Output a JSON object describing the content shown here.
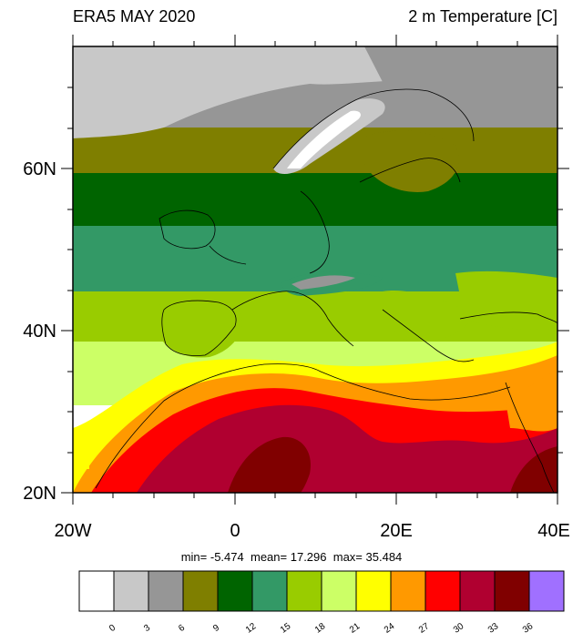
{
  "title_left": "ERA5 MAY 2020",
  "title_right": "2 m Temperature [C]",
  "x_labels": [
    "20W",
    "0",
    "20E",
    "40E"
  ],
  "y_labels": [
    "60N",
    "40N",
    "20N"
  ],
  "stats": {
    "min_label": "min=",
    "min": "-5.474",
    "mean_label": "mean=",
    "mean": "17.296",
    "max_label": "max=",
    "max": "35.484"
  },
  "legend": {
    "levels": [
      "0",
      "3",
      "6",
      "9",
      "12",
      "15",
      "18",
      "21",
      "24",
      "27",
      "30",
      "33",
      "36"
    ],
    "colors": [
      "#ffffff",
      "#c8c8c8",
      "#969696",
      "#7f7f00",
      "#006400",
      "#339966",
      "#99cc00",
      "#ccff66",
      "#ffff00",
      "#ff9900",
      "#ff0000",
      "#b00030",
      "#800000",
      "#a070ff"
    ]
  }
}
